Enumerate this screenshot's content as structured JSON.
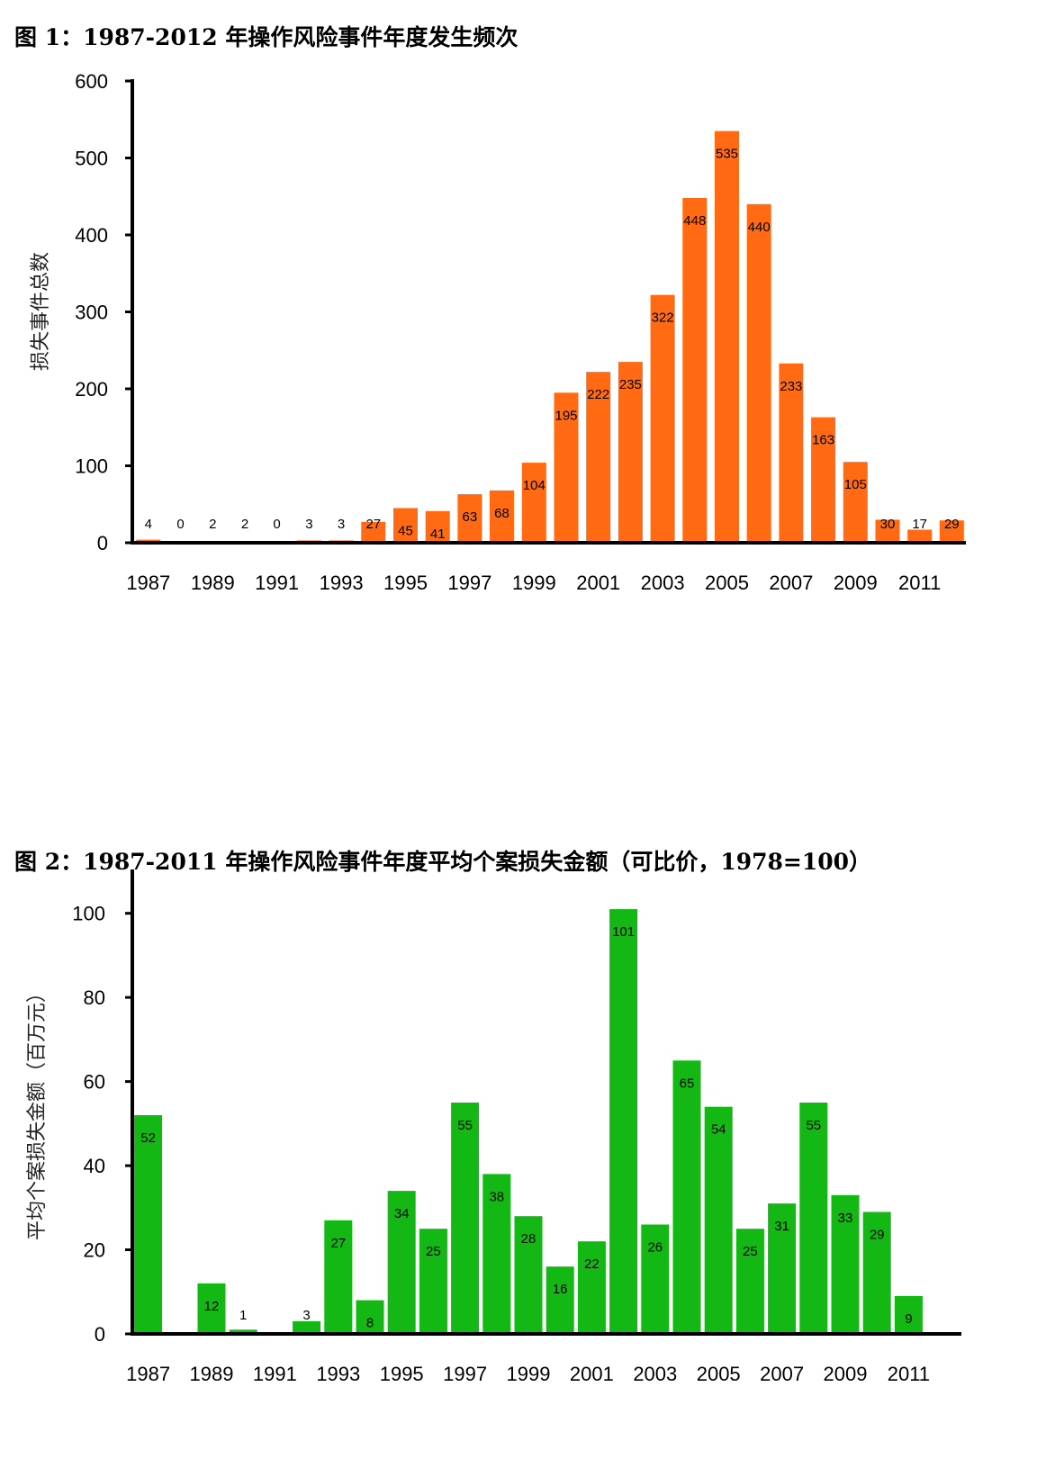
{
  "figures": [
    {
      "title": "图 1：1987-2012 年操作风险事件年度发生频次",
      "chart_data": {
        "type": "bar",
        "title": "图 1：1987-2012 年操作风险事件年度发生频次",
        "xlabel": "",
        "ylabel": "损失事件总数",
        "ylim": [
          0,
          600
        ],
        "yticks": [
          0,
          100,
          200,
          300,
          400,
          500,
          600
        ],
        "categories": [
          "1987",
          "1988",
          "1989",
          "1990",
          "1991",
          "1992",
          "1993",
          "1994",
          "1995",
          "1996",
          "1997",
          "1998",
          "1999",
          "2000",
          "2001",
          "2002",
          "2003",
          "2004",
          "2005",
          "2006",
          "2007",
          "2008",
          "2009",
          "2010",
          "2011",
          "2012"
        ],
        "xtick_labels": [
          "1987",
          "1989",
          "1991",
          "1993",
          "1995",
          "1997",
          "1999",
          "2001",
          "2003",
          "2005",
          "2007",
          "2009",
          "2011"
        ],
        "values": [
          4,
          0,
          2,
          2,
          0,
          3,
          3,
          27,
          45,
          41,
          63,
          68,
          104,
          195,
          222,
          235,
          322,
          448,
          535,
          440,
          233,
          163,
          105,
          30,
          17,
          29
        ],
        "bar_color": "#FF6A13",
        "grid": false,
        "legend": "none"
      }
    },
    {
      "title": "图 2：1987-2011 年操作风险事件年度平均个案损失金额（可比价，1978=100）",
      "chart_data": {
        "type": "bar",
        "title": "图 2：1987-2011 年操作风险事件年度平均个案损失金额（可比价，1978=100）",
        "xlabel": "",
        "ylabel": "平均个案损失金额（百万元）",
        "ylim": [
          0,
          110
        ],
        "yticks": [
          0,
          20,
          40,
          60,
          80,
          100
        ],
        "categories": [
          "1987",
          "1988",
          "1989",
          "1990",
          "1991",
          "1992",
          "1993",
          "1994",
          "1995",
          "1996",
          "1997",
          "1998",
          "1999",
          "2000",
          "2001",
          "2002",
          "2003",
          "2004",
          "2005",
          "2006",
          "2007",
          "2008",
          "2009",
          "2010",
          "2011"
        ],
        "xtick_labels": [
          "1987",
          "1989",
          "1991",
          "1993",
          "1995",
          "1997",
          "1999",
          "2001",
          "2003",
          "2005",
          "2007",
          "2009",
          "2011"
        ],
        "values": [
          52,
          null,
          12,
          1,
          null,
          3,
          27,
          8,
          34,
          25,
          55,
          38,
          28,
          16,
          22,
          101,
          26,
          65,
          54,
          25,
          31,
          55,
          33,
          29,
          9
        ],
        "bar_color": "#14B814",
        "grid": false,
        "legend": "none"
      }
    }
  ]
}
